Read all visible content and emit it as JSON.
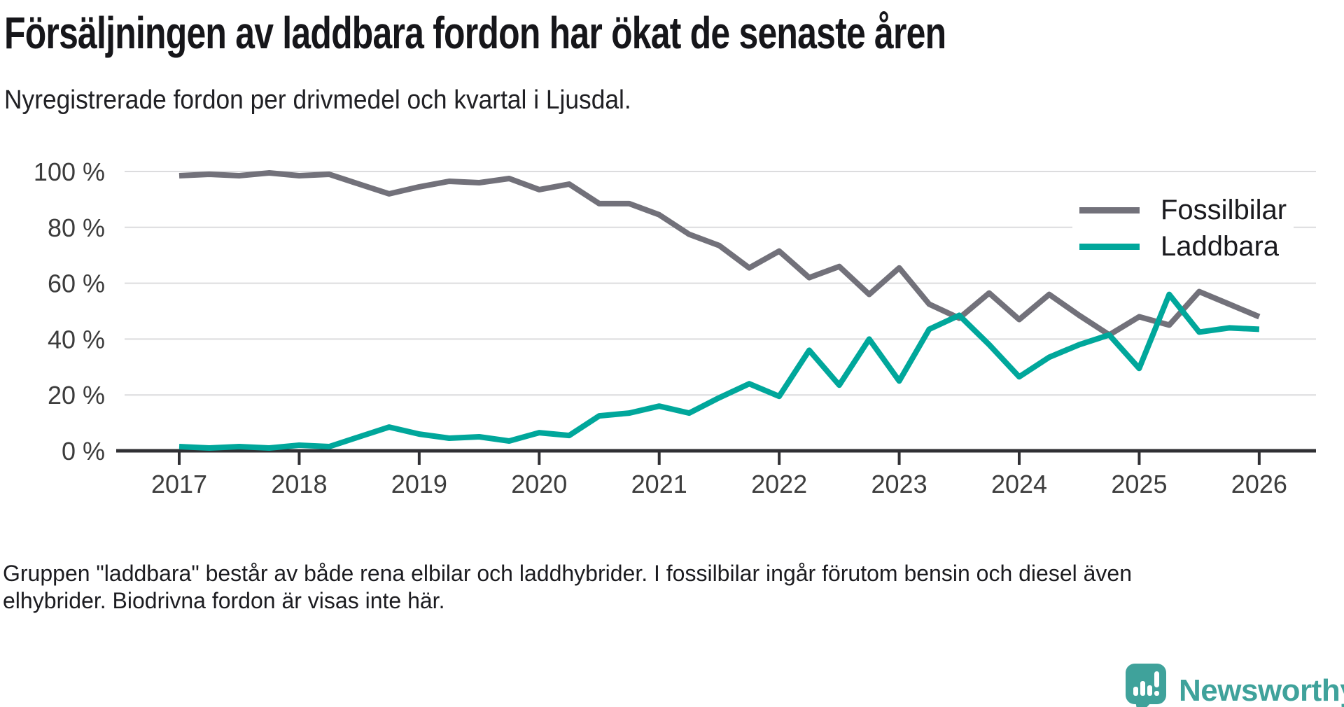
{
  "header": {
    "title": "Försäljningen av laddbara fordon har ökat de senaste åren",
    "subtitle": "Nyregistrerade fordon per drivmedel och kvartal i Ljusdal."
  },
  "chart_data": {
    "type": "line",
    "title": "Försäljningen av laddbara fordon har ökat de senaste åren",
    "subtitle": "Nyregistrerade fordon per drivmedel och kvartal i Ljusdal.",
    "x_unit": "quarter",
    "x_start": "2017 Q1",
    "x_end": "2026 Q1",
    "x_ticks": [
      "2017",
      "2018",
      "2019",
      "2020",
      "2021",
      "2022",
      "2023",
      "2024",
      "2025",
      "2026"
    ],
    "y_ticks": [
      {
        "value": 0,
        "label": "0 %"
      },
      {
        "value": 20,
        "label": "20 %"
      },
      {
        "value": 40,
        "label": "40 %"
      },
      {
        "value": 60,
        "label": "60 %"
      },
      {
        "value": 80,
        "label": "80 %"
      },
      {
        "value": 100,
        "label": "100 %"
      }
    ],
    "ylim": [
      0,
      100
    ],
    "grid": "horizontal",
    "legend_position": "top-right",
    "series": [
      {
        "name": "Fossilbilar",
        "color": "#72717a",
        "values": [
          98.5,
          99,
          98.5,
          99.5,
          98.5,
          99,
          95.5,
          92,
          94.5,
          96.5,
          96,
          97.5,
          93.5,
          95.5,
          88.5,
          88.5,
          84.5,
          77.5,
          73.5,
          65.5,
          71.5,
          62,
          66,
          56,
          65.5,
          52.5,
          47.5,
          56.5,
          47,
          56,
          48.5,
          41.5,
          48,
          45,
          57,
          52.5,
          48
        ]
      },
      {
        "name": "Laddbara",
        "color": "#00a79b",
        "values": [
          1.5,
          1,
          1.5,
          1,
          2,
          1.5,
          5,
          8.5,
          6,
          4.5,
          5,
          3.5,
          6.5,
          5.5,
          12.5,
          13.5,
          16,
          13.5,
          19,
          24,
          19.5,
          36,
          23.5,
          40,
          25,
          43.5,
          48.5,
          38,
          26.5,
          33.5,
          38,
          41.5,
          29.5,
          56,
          42.5,
          44,
          43.5
        ]
      }
    ]
  },
  "footnote": {
    "line1": "Gruppen \"laddbara\" består av både rena elbilar och laddhybrider. I fossilbilar ingår förutom bensin och diesel även",
    "line2": "elhybrider. Biodrivna fordon är visas inte här."
  },
  "logo": {
    "text": "Newsworthy"
  },
  "colors": {
    "fossil_line": "#72717a",
    "laddbara_line": "#00a79b",
    "grid": "#dcdcde",
    "axis": "#303034",
    "axis_text": "#3c3c3c",
    "title_text": "#16161a",
    "logo_teal": "#3fa29b",
    "background": "#ffffff"
  }
}
